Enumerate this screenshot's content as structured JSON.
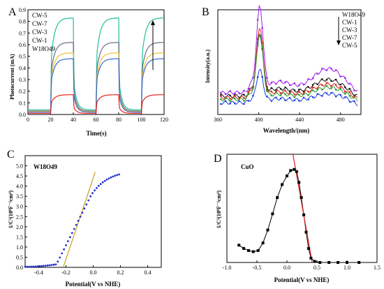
{
  "colors": {
    "cw5": "#1fbf9a",
    "cw7": "#6b6b8a",
    "cw3": "#f0c030",
    "cw1": "#3a6ad0",
    "w18o49": "#e8201a",
    "purple": "#a020f0",
    "black": "#111111",
    "red": "#e02020",
    "green": "#2a9a2a",
    "blue": "#1f3fe0",
    "fit_c": "#c8a020",
    "fit_d": "#e02020",
    "marker_c": "#2030d0",
    "marker_d": "#000000"
  },
  "chart_data": [
    {
      "panel": "A",
      "type": "line",
      "xlabel": "Time(s)",
      "ylabel": "Photocurrent (mA)",
      "xlim": [
        0,
        120
      ],
      "ylim": [
        0,
        0.9
      ],
      "xticks": [
        0,
        20,
        40,
        60,
        80,
        100,
        120
      ],
      "yticks": [
        0.0,
        0.1,
        0.2,
        0.3,
        0.4,
        0.5,
        0.6,
        0.7,
        0.8,
        0.9
      ],
      "legend": [
        "CW-5",
        "CW-7",
        "CW-3",
        "CW-1",
        "W18O49"
      ],
      "legend_position": "top-left",
      "on_intervals": [
        [
          20,
          40
        ],
        [
          60,
          80
        ],
        [
          100,
          120
        ]
      ],
      "series": [
        {
          "name": "CW-5",
          "color_key": "cw5",
          "dark": 0.04,
          "on": 0.83
        },
        {
          "name": "CW-7",
          "color_key": "cw7",
          "dark": 0.03,
          "on": 0.62
        },
        {
          "name": "CW-3",
          "color_key": "cw3",
          "dark": 0.025,
          "on": 0.53
        },
        {
          "name": "CW-1",
          "color_key": "cw1",
          "dark": 0.02,
          "on": 0.48
        },
        {
          "name": "W18O49",
          "color_key": "w18o49",
          "dark": 0.01,
          "on": 0.17
        }
      ]
    },
    {
      "panel": "B",
      "type": "line",
      "xlabel": "Wavelength/(nm)",
      "ylabel": "Intensity(a.u.)",
      "xlim": [
        360,
        500
      ],
      "xticks": [
        360,
        400,
        440,
        480
      ],
      "legend": [
        "W18O49",
        "CW-1",
        "CW-3",
        "CW-7",
        "CW-5"
      ],
      "legend_position": "top-right",
      "series": [
        {
          "name": "W18O49",
          "color_key": "purple",
          "peak": 1.0,
          "broad": 0.32,
          "base": 0.16
        },
        {
          "name": "CW-1",
          "color_key": "black",
          "peak": 0.72,
          "broad": 0.22,
          "base": 0.12
        },
        {
          "name": "CW-3",
          "color_key": "red",
          "peak": 0.83,
          "broad": 0.18,
          "base": 0.1
        },
        {
          "name": "CW-7",
          "color_key": "green",
          "peak": 0.78,
          "broad": 0.16,
          "base": 0.08
        },
        {
          "name": "CW-5",
          "color_key": "blue",
          "peak": 0.38,
          "broad": 0.12,
          "base": 0.04
        }
      ]
    },
    {
      "panel": "C",
      "type": "scatter",
      "xlabel": "Potential(V vs NHE)",
      "ylabel": "1/C²(10⁹F⁻²cm⁴)",
      "annotation": "W18O49",
      "xlim": [
        -0.5,
        0.5
      ],
      "ylim": [
        0,
        5.5
      ],
      "xticks": [
        -0.4,
        -0.2,
        0.0,
        0.2,
        0.4
      ],
      "yticks": [
        0,
        0.5,
        1.0,
        1.5,
        2.0,
        2.5,
        3.0,
        3.5,
        4.0,
        4.5,
        5.0
      ],
      "fit_line": [
        [
          -0.22,
          0.0
        ],
        [
          0.015,
          4.7
        ]
      ]
    },
    {
      "panel": "D",
      "type": "scatter",
      "xlabel": "Potential(V vs  NHE)",
      "ylabel": "1/C²(10⁹F⁻²cm⁴)",
      "annotation": "CuO",
      "xlim": [
        -1.0,
        1.5
      ],
      "ylim": [
        0,
        1.0
      ],
      "xticks": [
        -1.0,
        -0.5,
        0.0,
        0.5,
        1.0,
        1.5
      ],
      "fit_line": [
        [
          0.1,
          1.0
        ],
        [
          0.42,
          0.0
        ]
      ],
      "points": [
        [
          -0.8,
          0.16
        ],
        [
          -0.72,
          0.13
        ],
        [
          -0.64,
          0.11
        ],
        [
          -0.56,
          0.1
        ],
        [
          -0.48,
          0.11
        ],
        [
          -0.4,
          0.18
        ],
        [
          -0.32,
          0.3
        ],
        [
          -0.24,
          0.45
        ],
        [
          -0.16,
          0.6
        ],
        [
          -0.08,
          0.72
        ],
        [
          0.0,
          0.8
        ],
        [
          0.06,
          0.85
        ],
        [
          0.12,
          0.86
        ],
        [
          0.16,
          0.84
        ],
        [
          0.2,
          0.74
        ],
        [
          0.24,
          0.6
        ],
        [
          0.28,
          0.44
        ],
        [
          0.32,
          0.28
        ],
        [
          0.36,
          0.13
        ],
        [
          0.4,
          0.04
        ],
        [
          0.46,
          0.01
        ],
        [
          0.55,
          0.0
        ],
        [
          0.7,
          0.0
        ],
        [
          0.85,
          0.0
        ],
        [
          1.0,
          0.0
        ],
        [
          1.2,
          0.0
        ]
      ]
    }
  ],
  "panels": {
    "a": {
      "letter": "A"
    },
    "b": {
      "letter": "B"
    },
    "c": {
      "letter": "C"
    },
    "d": {
      "letter": "D"
    }
  }
}
